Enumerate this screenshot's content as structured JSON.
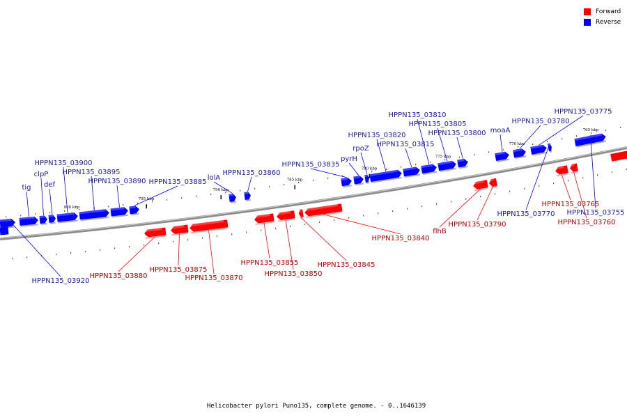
{
  "colors": {
    "forward": "#ff0000",
    "reverse": "#0000ff",
    "forward_text": "#c00000",
    "reverse_text": "#1a1aa8"
  },
  "legend": {
    "forward": "Forward",
    "reverse": "Reverse"
  },
  "caption": "Helicobacter pylori Puno135, complete genome. - 0..1646139",
  "scale_labels": [
    "800 kbp",
    "795 kbp",
    "790 kbp",
    "785 kbp",
    "780 kbp",
    "775 kbp",
    "770 kbp",
    "765 kbp"
  ],
  "genes": [
    {
      "label": "HPPN135_03920",
      "strand": "reverse"
    },
    {
      "label": "tig",
      "strand": "reverse"
    },
    {
      "label": "clpP",
      "strand": "reverse"
    },
    {
      "label": "def",
      "strand": "reverse"
    },
    {
      "label": "HPPN135_03900",
      "strand": "reverse"
    },
    {
      "label": "HPPN135_03895",
      "strand": "reverse"
    },
    {
      "label": "HPPN135_03890",
      "strand": "reverse"
    },
    {
      "label": "HPPN135_03885",
      "strand": "reverse"
    },
    {
      "label": "lolA",
      "strand": "reverse"
    },
    {
      "label": "HPPN135_03860",
      "strand": "reverse"
    },
    {
      "label": "HPPN135_03835",
      "strand": "reverse"
    },
    {
      "label": "pyrH",
      "strand": "reverse"
    },
    {
      "label": "rpoZ",
      "strand": "reverse"
    },
    {
      "label": "HPPN135_03820",
      "strand": "reverse"
    },
    {
      "label": "HPPN135_03815",
      "strand": "reverse"
    },
    {
      "label": "HPPN135_03810",
      "strand": "reverse"
    },
    {
      "label": "HPPN135_03805",
      "strand": "reverse"
    },
    {
      "label": "HPPN135_03800",
      "strand": "reverse"
    },
    {
      "label": "moaA",
      "strand": "reverse"
    },
    {
      "label": "HPPN135_03780",
      "strand": "reverse"
    },
    {
      "label": "HPPN135_03775",
      "strand": "reverse"
    },
    {
      "label": "HPPN135_03770",
      "strand": "reverse"
    },
    {
      "label": "HPPN135_03755",
      "strand": "reverse"
    },
    {
      "label": "HPPN135_03880",
      "strand": "forward"
    },
    {
      "label": "HPPN135_03875",
      "strand": "forward"
    },
    {
      "label": "HPPN135_03870",
      "strand": "forward"
    },
    {
      "label": "HPPN135_03855",
      "strand": "forward"
    },
    {
      "label": "HPPN135_03850",
      "strand": "forward"
    },
    {
      "label": "HPPN135_03845",
      "strand": "forward"
    },
    {
      "label": "HPPN135_03840",
      "strand": "forward"
    },
    {
      "label": "flhB",
      "strand": "forward"
    },
    {
      "label": "HPPN135_03790",
      "strand": "forward"
    },
    {
      "label": "HPPN135_03765",
      "strand": "forward"
    },
    {
      "label": "HPPN135_03760",
      "strand": "forward"
    }
  ]
}
